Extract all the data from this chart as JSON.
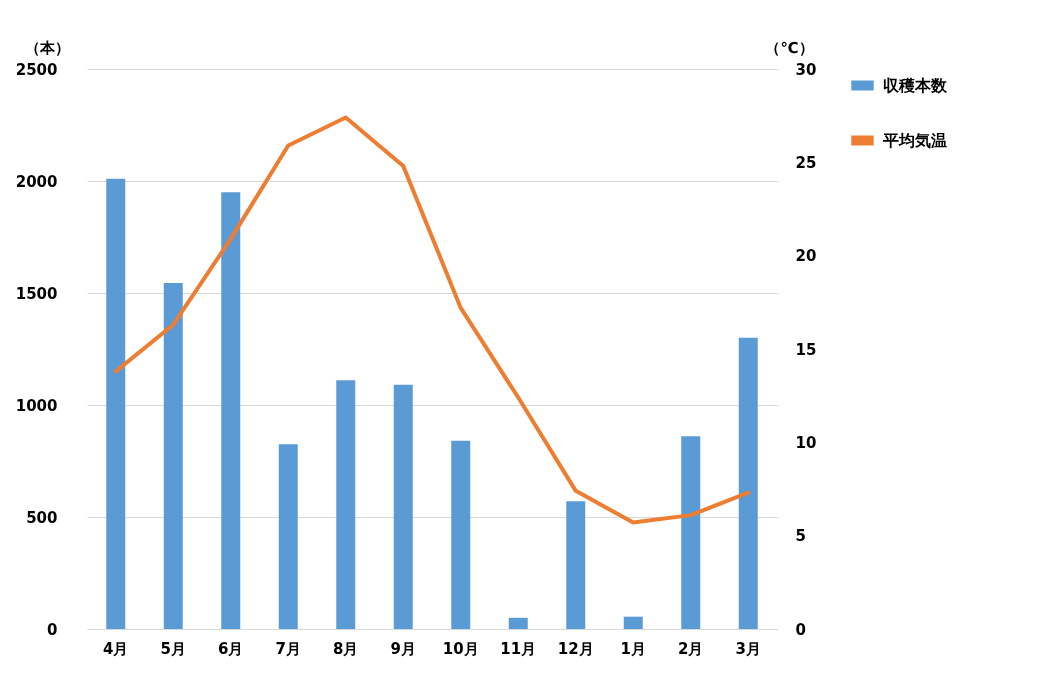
{
  "chart_data": {
    "type": "bar",
    "categories": [
      "4月",
      "5月",
      "6月",
      "7月",
      "8月",
      "9月",
      "10月",
      "11月",
      "12月",
      "1月",
      "2月",
      "3月"
    ],
    "series": [
      {
        "name": "収穫本数",
        "color": "#5b9bd5",
        "values": [
          2010,
          1545,
          1950,
          825,
          1110,
          1090,
          840,
          50,
          570,
          55,
          860,
          1300
        ]
      },
      {
        "name": "平均気温",
        "type": "line",
        "axis": "y2",
        "color": "#ed7d31",
        "values": [
          13.8,
          16.3,
          20.9,
          25.9,
          27.4,
          24.8,
          17.2,
          12.4,
          7.4,
          5.7,
          6.1,
          7.3
        ]
      }
    ],
    "ylabel": "（本）",
    "y2label": "（℃）",
    "ylim": [
      0,
      2500
    ],
    "yticks": [
      0,
      500,
      1000,
      1500,
      2000,
      2500
    ],
    "y2lim": [
      0,
      30
    ],
    "y2ticks": [
      0,
      5,
      10,
      15,
      20,
      25,
      30
    ],
    "grid": "y",
    "legend": "right"
  }
}
